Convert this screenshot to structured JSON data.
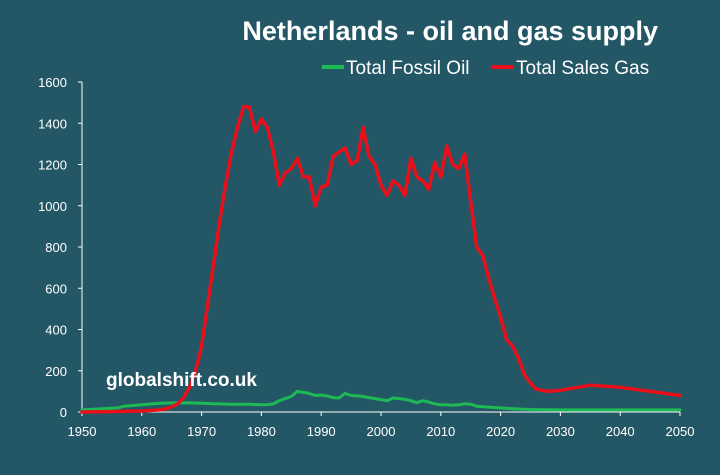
{
  "chart_data": {
    "type": "line",
    "title": "Netherlands - oil and gas supply",
    "xlabel": "",
    "ylabel": "",
    "xlim": [
      1950,
      2050
    ],
    "ylim": [
      0,
      1600
    ],
    "x_ticks": [
      "1950",
      "1960",
      "1970",
      "1980",
      "1990",
      "2000",
      "2010",
      "2020",
      "2030",
      "2040",
      "2050"
    ],
    "y_ticks": [
      "0",
      "200",
      "400",
      "600",
      "800",
      "1000",
      "1200",
      "1400",
      "1600"
    ],
    "grid": false,
    "legend_position": "top-right",
    "watermark": "globalshift.co.uk",
    "series": [
      {
        "name": "Total Fossil Oil",
        "color": "#1db954",
        "x": [
          1950,
          1953,
          1956,
          1957,
          1960,
          1963,
          1966,
          1968,
          1970,
          1972,
          1975,
          1978,
          1980,
          1981,
          1982,
          1983,
          1985,
          1986,
          1987,
          1988,
          1989,
          1990,
          1991,
          1992,
          1993,
          1994,
          1995,
          1996,
          1997,
          1998,
          1999,
          2000,
          2001,
          2002,
          2003,
          2004,
          2005,
          2006,
          2007,
          2008,
          2009,
          2010,
          2011,
          2012,
          2013,
          2014,
          2015,
          2016,
          2018,
          2020,
          2022,
          2025,
          2030,
          2035,
          2040,
          2045,
          2050
        ],
        "y": [
          10,
          15,
          20,
          28,
          35,
          42,
          45,
          44,
          42,
          40,
          38,
          38,
          35,
          36,
          40,
          55,
          75,
          100,
          95,
          90,
          80,
          82,
          78,
          70,
          68,
          90,
          80,
          78,
          75,
          70,
          65,
          60,
          55,
          68,
          65,
          62,
          55,
          45,
          55,
          48,
          40,
          35,
          35,
          33,
          35,
          40,
          38,
          28,
          24,
          20,
          16,
          12,
          10,
          10,
          10,
          10,
          10
        ]
      },
      {
        "name": "Total Sales Gas",
        "color": "#e8101a",
        "x": [
          1950,
          1955,
          1960,
          1963,
          1964,
          1965,
          1966,
          1967,
          1968,
          1969,
          1970,
          1971,
          1972,
          1973,
          1974,
          1975,
          1976,
          1977,
          1978,
          1979,
          1980,
          1981,
          1982,
          1983,
          1984,
          1985,
          1986,
          1987,
          1988,
          1989,
          1990,
          1991,
          1992,
          1993,
          1994,
          1995,
          1996,
          1997,
          1998,
          1999,
          2000,
          2001,
          2002,
          2003,
          2004,
          2005,
          2006,
          2007,
          2008,
          2009,
          2010,
          2011,
          2012,
          2013,
          2014,
          2015,
          2016,
          2017,
          2018,
          2019,
          2020,
          2021,
          2022,
          2023,
          2024,
          2025,
          2026,
          2028,
          2030,
          2035,
          2040,
          2045,
          2050
        ],
        "y": [
          0,
          2,
          5,
          10,
          15,
          25,
          40,
          70,
          120,
          200,
          320,
          520,
          720,
          920,
          1100,
          1260,
          1380,
          1480,
          1480,
          1360,
          1420,
          1380,
          1260,
          1100,
          1160,
          1180,
          1230,
          1140,
          1140,
          1000,
          1090,
          1100,
          1240,
          1260,
          1280,
          1200,
          1220,
          1380,
          1240,
          1200,
          1100,
          1050,
          1120,
          1100,
          1050,
          1230,
          1140,
          1120,
          1080,
          1210,
          1140,
          1290,
          1200,
          1180,
          1250,
          1020,
          800,
          760,
          650,
          550,
          460,
          350,
          320,
          260,
          180,
          140,
          110,
          100,
          105,
          130,
          120,
          100,
          80
        ]
      }
    ]
  }
}
